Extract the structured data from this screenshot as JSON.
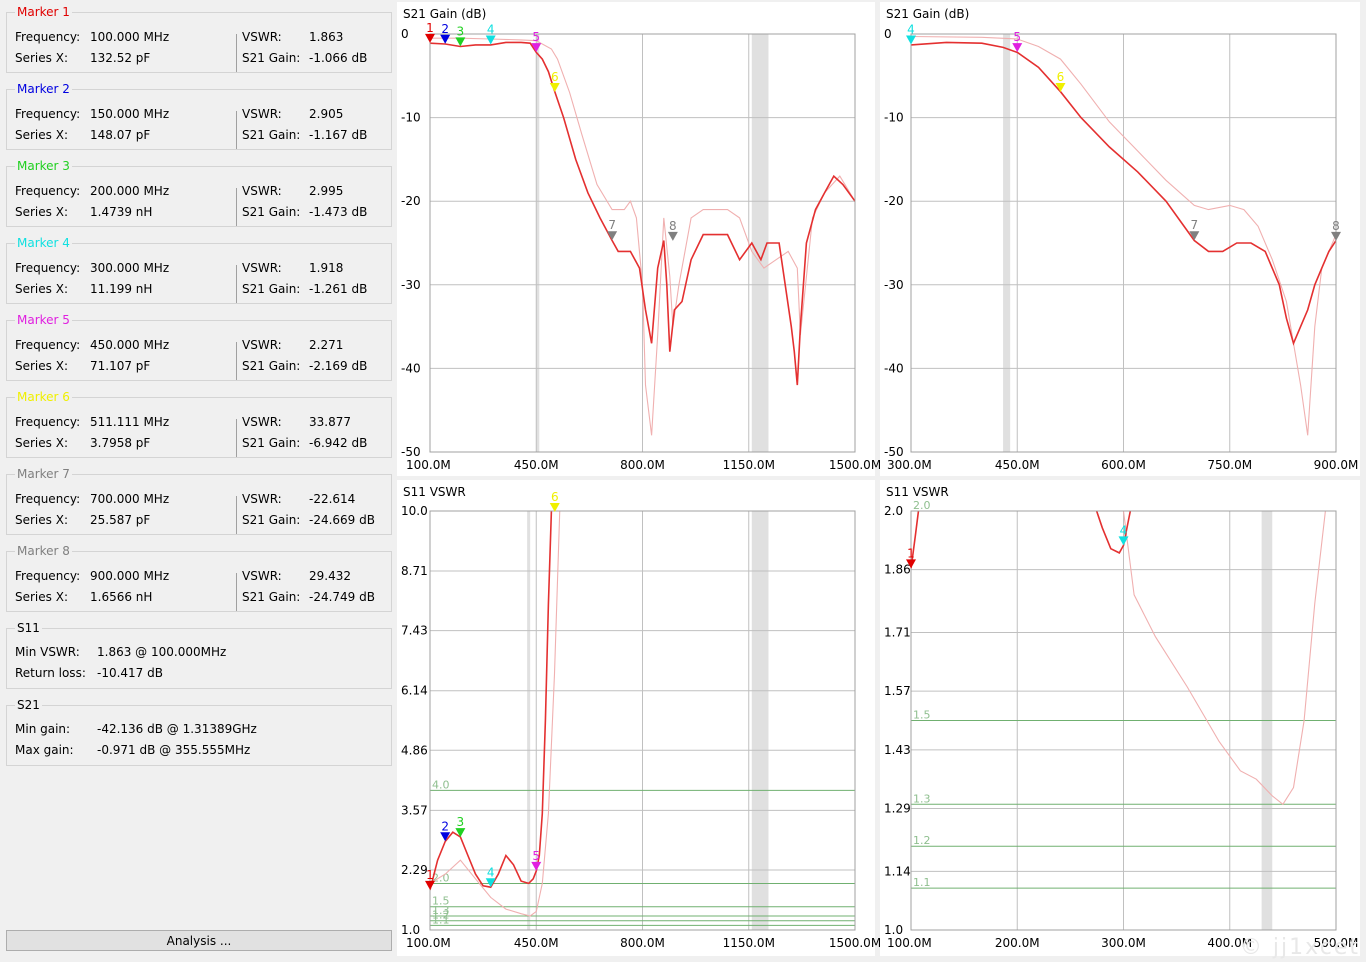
{
  "markers": [
    {
      "title": "Marker 1",
      "color": "#e00000",
      "freq_label": "Frequency:",
      "freq": "100.000 MHz",
      "x_label": "Series X:",
      "x": "132.52 pF",
      "vswr_label": "VSWR:",
      "vswr": "1.863",
      "gain_label": "S21 Gain:",
      "gain": "-1.066 dB"
    },
    {
      "title": "Marker 2",
      "color": "#0000e0",
      "freq_label": "Frequency:",
      "freq": "150.000 MHz",
      "x_label": "Series X:",
      "x": "148.07 pF",
      "vswr_label": "VSWR:",
      "vswr": "2.905",
      "gain_label": "S21 Gain:",
      "gain": "-1.167 dB"
    },
    {
      "title": "Marker 3",
      "color": "#20d020",
      "freq_label": "Frequency:",
      "freq": "200.000 MHz",
      "x_label": "Series X:",
      "x": "1.4739 nH",
      "vswr_label": "VSWR:",
      "vswr": "2.995",
      "gain_label": "S21 Gain:",
      "gain": "-1.473 dB"
    },
    {
      "title": "Marker 4",
      "color": "#10e0e0",
      "freq_label": "Frequency:",
      "freq": "300.000 MHz",
      "x_label": "Series X:",
      "x": "11.199 nH",
      "vswr_label": "VSWR:",
      "vswr": "1.918",
      "gain_label": "S21 Gain:",
      "gain": "-1.261 dB"
    },
    {
      "title": "Marker 5",
      "color": "#e020e0",
      "freq_label": "Frequency:",
      "freq": "450.000 MHz",
      "x_label": "Series X:",
      "x": "71.107 pF",
      "vswr_label": "VSWR:",
      "vswr": "2.271",
      "gain_label": "S21 Gain:",
      "gain": "-2.169 dB"
    },
    {
      "title": "Marker 6",
      "color": "#f0f000",
      "freq_label": "Frequency:",
      "freq": "511.111 MHz",
      "x_label": "Series X:",
      "x": "3.7958 pF",
      "vswr_label": "VSWR:",
      "vswr": "33.877",
      "gain_label": "S21 Gain:",
      "gain": "-6.942 dB"
    },
    {
      "title": "Marker 7",
      "color": "#808080",
      "freq_label": "Frequency:",
      "freq": "700.000 MHz",
      "x_label": "Series X:",
      "x": "25.587 pF",
      "vswr_label": "VSWR:",
      "vswr": "-22.614",
      "gain_label": "S21 Gain:",
      "gain": "-24.669 dB"
    },
    {
      "title": "Marker 8",
      "color": "#808080",
      "freq_label": "Frequency:",
      "freq": "900.000 MHz",
      "x_label": "Series X:",
      "x": "1.6566 nH",
      "vswr_label": "VSWR:",
      "vswr": "29.432",
      "gain_label": "S21 Gain:",
      "gain": "-24.749 dB"
    }
  ],
  "s11": {
    "title": "S11",
    "min_vswr_label": "Min VSWR:",
    "min_vswr": "1.863 @ 100.000MHz",
    "return_loss_label": "Return loss:",
    "return_loss": "-10.417 dB"
  },
  "s21": {
    "title": "S21",
    "min_gain_label": "Min gain:",
    "min_gain": "-42.136 dB @ 1.31389GHz",
    "max_gain_label": "Max gain:",
    "max_gain": "-0.971 dB @ 355.555MHz"
  },
  "analysis_button": "Analysis ...",
  "watermark": "© jj1xcet",
  "chart_data": [
    {
      "type": "line",
      "title": "S21  Gain (dB)",
      "xunit": "MHz",
      "xlim": [
        100,
        1500
      ],
      "ylim": [
        -50,
        0
      ],
      "xticks": [
        "100.0M",
        "450.0M",
        "800.0M",
        "1150.0M",
        "1500.0M"
      ],
      "yticks": [
        "0",
        "-10",
        "-20",
        "-30",
        "-40",
        "-50"
      ],
      "ytick_values": [
        0,
        -10,
        -20,
        -30,
        -40,
        -50
      ],
      "highlight": [
        [
          450,
          460
        ],
        [
          1160,
          1215
        ]
      ],
      "series": [
        {
          "role": "main",
          "color": "#e43030",
          "x": [
            100,
            150,
            200,
            250,
            300,
            350,
            400,
            430,
            450,
            470,
            490,
            511,
            540,
            580,
            620,
            660,
            700,
            720,
            760,
            790,
            810,
            830,
            850,
            870,
            880,
            890,
            905,
            930,
            960,
            1000,
            1040,
            1080,
            1120,
            1160,
            1190,
            1210,
            1230,
            1250,
            1270,
            1290,
            1300,
            1310,
            1320,
            1340,
            1370,
            1400,
            1430,
            1460,
            1500
          ],
          "y": [
            -1.1,
            -1.2,
            -1.5,
            -1.3,
            -1.3,
            -1.0,
            -1.0,
            -1.1,
            -2.2,
            -3.0,
            -4.5,
            -6.9,
            -10,
            -15,
            -19,
            -22,
            -24.7,
            -26,
            -26,
            -28,
            -33,
            -37,
            -28,
            -24.7,
            -30,
            -38,
            -33,
            -32,
            -27,
            -24,
            -24,
            -24,
            -27,
            -25,
            -27,
            -25,
            -25,
            -25,
            -30,
            -35,
            -38,
            -42,
            -35,
            -25,
            -21,
            -19,
            -17,
            -18,
            -20
          ]
        },
        {
          "role": "reference",
          "color": "#f0b0b0",
          "x": [
            100,
            200,
            300,
            400,
            450,
            500,
            520,
            560,
            600,
            650,
            700,
            740,
            760,
            780,
            800,
            810,
            830,
            850,
            870,
            890,
            900,
            920,
            960,
            1000,
            1040,
            1080,
            1120,
            1160,
            1200,
            1240,
            1280,
            1310,
            1320,
            1360,
            1400,
            1450,
            1500
          ],
          "y": [
            -0.5,
            -0.5,
            -0.6,
            -0.7,
            -0.8,
            -1.8,
            -3,
            -7,
            -12,
            -18,
            -21,
            -21,
            -20,
            -22,
            -30,
            -42,
            -48,
            -36,
            -22,
            -29,
            -35,
            -30,
            -22,
            -21,
            -21,
            -21,
            -22,
            -26,
            -28,
            -27,
            -26,
            -28,
            -36,
            -22,
            -19,
            -17,
            -20
          ]
        }
      ],
      "markers": [
        {
          "label": "1",
          "x": 100,
          "y": -1.066,
          "color": "#e00000"
        },
        {
          "label": "2",
          "x": 150,
          "y": -1.167,
          "color": "#0000e0"
        },
        {
          "label": "3",
          "x": 200,
          "y": -1.473,
          "color": "#20d020"
        },
        {
          "label": "4",
          "x": 300,
          "y": -1.261,
          "color": "#10e0e0"
        },
        {
          "label": "5",
          "x": 450,
          "y": -2.169,
          "color": "#e020e0"
        },
        {
          "label": "6",
          "x": 511,
          "y": -6.942,
          "color": "#f0f000"
        },
        {
          "label": "7",
          "x": 700,
          "y": -24.669,
          "color": "#808080"
        },
        {
          "label": "8",
          "x": 900,
          "y": -24.749,
          "color": "#808080"
        }
      ]
    },
    {
      "type": "line",
      "title": "S21  Gain (dB)",
      "xunit": "MHz",
      "xlim": [
        300,
        900
      ],
      "ylim": [
        -50,
        0
      ],
      "xticks": [
        "300.0M",
        "450.0M",
        "600.0M",
        "750.0M",
        "900.0M"
      ],
      "yticks": [
        "0",
        "-10",
        "-20",
        "-30",
        "-40",
        "-50"
      ],
      "ytick_values": [
        0,
        -10,
        -20,
        -30,
        -40,
        -50
      ],
      "highlight": [
        [
          430,
          440
        ]
      ],
      "series": [
        {
          "role": "main",
          "color": "#e43030",
          "x": [
            300,
            350,
            400,
            430,
            450,
            480,
            511,
            540,
            580,
            620,
            660,
            700,
            720,
            740,
            760,
            780,
            800,
            820,
            830,
            840,
            850,
            860,
            870,
            880,
            890,
            900
          ],
          "y": [
            -1.3,
            -1.0,
            -1.1,
            -1.6,
            -2.2,
            -4,
            -6.9,
            -10,
            -13.5,
            -16.5,
            -20,
            -24.7,
            -26,
            -26,
            -25,
            -25,
            -26,
            -30,
            -34,
            -37,
            -35,
            -33,
            -30,
            -28,
            -26,
            -24.7
          ]
        },
        {
          "role": "reference",
          "color": "#f0b0b0",
          "x": [
            300,
            400,
            450,
            480,
            511,
            540,
            580,
            620,
            660,
            700,
            720,
            750,
            770,
            790,
            810,
            830,
            840,
            850,
            860,
            870,
            880,
            890,
            900
          ],
          "y": [
            -0.3,
            -0.4,
            -0.6,
            -1.5,
            -3,
            -6,
            -10.5,
            -14,
            -17.5,
            -20.5,
            -21,
            -20.5,
            -21,
            -23,
            -27,
            -32,
            -37,
            -42,
            -48,
            -35,
            -28,
            -26,
            -24
          ]
        }
      ],
      "markers": [
        {
          "label": "4",
          "x": 300,
          "y": -1.261,
          "color": "#10e0e0"
        },
        {
          "label": "5",
          "x": 450,
          "y": -2.169,
          "color": "#e020e0"
        },
        {
          "label": "6",
          "x": 511,
          "y": -6.942,
          "color": "#f0f000"
        },
        {
          "label": "7",
          "x": 700,
          "y": -24.669,
          "color": "#808080"
        },
        {
          "label": "8",
          "x": 900,
          "y": -24.749,
          "color": "#808080"
        }
      ]
    },
    {
      "type": "line",
      "title": "S11  VSWR",
      "xunit": "MHz",
      "xlim": [
        100,
        1500
      ],
      "ylim": [
        1.0,
        10.0
      ],
      "xticks": [
        "100.0M",
        "450.0M",
        "800.0M",
        "1150.0M",
        "1500.0M"
      ],
      "yticks": [
        "10.0",
        "8.71",
        "7.43",
        "6.14",
        "4.86",
        "3.57",
        "2.29",
        "1.0"
      ],
      "ytick_values": [
        10.0,
        8.71,
        7.43,
        6.14,
        4.86,
        3.57,
        2.29,
        1.0
      ],
      "guides": [
        {
          "value": 4.0,
          "label": "4.0"
        },
        {
          "value": 2.0,
          "label": "2.0"
        },
        {
          "value": 1.5,
          "label": "1.5"
        },
        {
          "value": 1.3,
          "label": "1.3"
        },
        {
          "value": 1.2,
          "label": "1.2"
        },
        {
          "value": 1.1,
          "label": "1.1"
        }
      ],
      "highlight": [
        [
          420,
          430
        ],
        [
          1160,
          1215
        ]
      ],
      "series": [
        {
          "role": "main",
          "color": "#e43030",
          "x": [
            100,
            125,
            150,
            175,
            200,
            225,
            250,
            275,
            300,
            325,
            350,
            375,
            400,
            425,
            440,
            450,
            460,
            470,
            480,
            490,
            500,
            511,
            520
          ],
          "y": [
            1.86,
            2.5,
            2.9,
            3.1,
            3.0,
            2.6,
            2.2,
            1.95,
            1.92,
            2.2,
            2.6,
            2.4,
            2.05,
            2.0,
            2.1,
            2.27,
            2.6,
            3.5,
            5.5,
            8.0,
            10.0,
            10.5,
            11
          ]
        },
        {
          "role": "reference",
          "color": "#f0b0b0",
          "x": [
            100,
            150,
            200,
            250,
            300,
            350,
            400,
            430,
            450,
            470,
            490,
            510,
            530
          ],
          "y": [
            2.0,
            2.2,
            2.5,
            2.1,
            1.7,
            1.45,
            1.35,
            1.3,
            1.4,
            2.0,
            3.5,
            6.5,
            10.5
          ]
        }
      ],
      "markers": [
        {
          "label": "1",
          "x": 100,
          "y": 1.863,
          "color": "#e00000"
        },
        {
          "label": "2",
          "x": 150,
          "y": 2.905,
          "color": "#0000e0"
        },
        {
          "label": "3",
          "x": 200,
          "y": 2.995,
          "color": "#20d020"
        },
        {
          "label": "4",
          "x": 300,
          "y": 1.918,
          "color": "#10e0e0"
        },
        {
          "label": "5",
          "x": 450,
          "y": 2.271,
          "color": "#e020e0"
        },
        {
          "label": "6",
          "x": 511,
          "y": 10.0,
          "color": "#f0f000"
        }
      ]
    },
    {
      "type": "line",
      "title": "S11  VSWR",
      "xunit": "MHz",
      "xlim": [
        100,
        500
      ],
      "ylim": [
        1.0,
        2.0
      ],
      "xticks": [
        "100.0M",
        "200.0M",
        "300.0M",
        "400.0M",
        "500.0M"
      ],
      "yticks": [
        "2.0",
        "1.86",
        "1.71",
        "1.57",
        "1.43",
        "1.29",
        "1.14",
        "1.0"
      ],
      "ytick_values": [
        2.0,
        1.86,
        1.71,
        1.57,
        1.43,
        1.29,
        1.14,
        1.0
      ],
      "guides": [
        {
          "value": 2.0,
          "label": "2.0"
        },
        {
          "value": 1.5,
          "label": "1.5"
        },
        {
          "value": 1.3,
          "label": "1.3"
        },
        {
          "value": 1.2,
          "label": "1.2"
        },
        {
          "value": 1.1,
          "label": "1.1"
        }
      ],
      "highlight": [
        [
          430,
          440
        ]
      ],
      "series": [
        {
          "role": "main",
          "color": "#e43030",
          "x": [
            100,
            102,
            104,
            106,
            108
          ],
          "y": [
            1.863,
            1.9,
            1.94,
            1.98,
            2.02
          ]
        },
        {
          "role": "main",
          "color": "#e43030",
          "x": [
            272,
            280,
            288,
            296,
            300,
            304,
            308
          ],
          "y": [
            2.02,
            1.96,
            1.91,
            1.9,
            1.918,
            1.97,
            2.02
          ]
        },
        {
          "role": "reference",
          "color": "#f0b0b0",
          "x": [
            300,
            310,
            330,
            360,
            390,
            410,
            425,
            440,
            450,
            460,
            470,
            480,
            490
          ],
          "y": [
            2.0,
            1.8,
            1.7,
            1.58,
            1.45,
            1.38,
            1.36,
            1.32,
            1.3,
            1.34,
            1.5,
            1.78,
            2.0
          ]
        }
      ],
      "markers": [
        {
          "label": "1",
          "x": 100,
          "y": 1.863,
          "color": "#e00000"
        },
        {
          "label": "4",
          "x": 300,
          "y": 1.918,
          "color": "#10e0e0"
        }
      ]
    }
  ]
}
